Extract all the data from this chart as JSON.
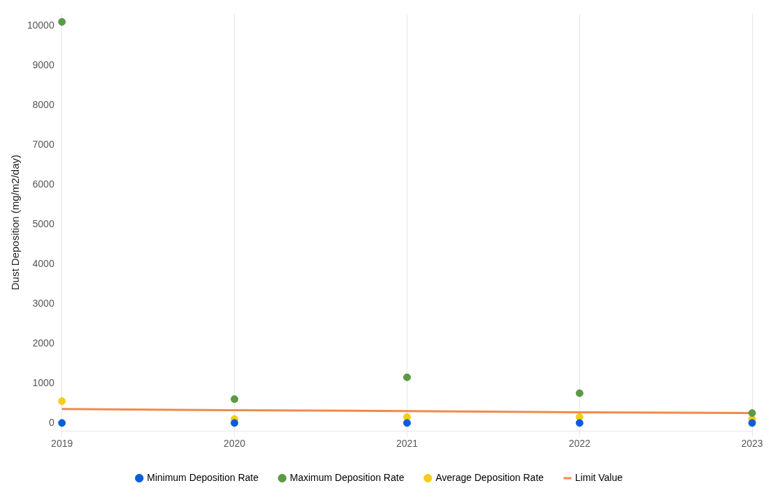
{
  "chart_data": {
    "type": "scatter",
    "ylabel": "Dust Deposition (mg/m2/day)",
    "categories": [
      "2019",
      "2020",
      "2021",
      "2022",
      "2023"
    ],
    "series": [
      {
        "name": "Minimum Deposition Rate",
        "color": "#0b5ed7",
        "values": [
          0,
          0,
          0,
          0,
          0
        ]
      },
      {
        "name": "Maximum Deposition Rate",
        "color": "#5a9a45",
        "values": [
          10100,
          600,
          1150,
          750,
          250
        ]
      },
      {
        "name": "Average Deposition Rate",
        "color": "#f5cc1e",
        "values": [
          550,
          100,
          150,
          150,
          100
        ]
      },
      {
        "name": "Limit Value",
        "type": "line",
        "marker": "none",
        "color": "#f08a4b",
        "values": [
          350,
          320,
          300,
          270,
          250
        ]
      }
    ],
    "ylim": [
      -200,
      10300
    ],
    "yticks": [
      0,
      1000,
      2000,
      3000,
      4000,
      5000,
      6000,
      7000,
      8000,
      9000,
      10000
    ],
    "grid": "x",
    "legend": "bottom",
    "marker": "circle"
  }
}
